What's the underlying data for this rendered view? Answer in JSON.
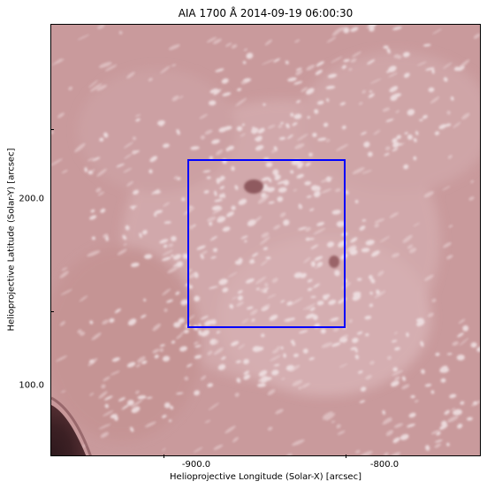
{
  "title": "AIA 1700 Å 2014-09-19 06:00:30",
  "x_axis": {
    "label": "Helioprojective Longitude (Solar-X) [arcsec]",
    "ticks": [
      "-900.0",
      "-800.0"
    ],
    "range": [
      -962,
      -732
    ]
  },
  "y_axis": {
    "label": "Helioprojective Latitude (Solar-Y) [arcsec]",
    "ticks": [
      "200.0",
      "100.0"
    ],
    "range": [
      60,
      295
    ]
  },
  "colors": {
    "sun_base": "#c99a9c",
    "sun_bright": "#f1e4e6",
    "sun_dark": "#8f5a5e",
    "limb": "#3c2024",
    "box": "#0000ff",
    "axes": "#000000"
  },
  "map": {
    "instrument": "AIA",
    "wavelength": "1700 Å",
    "date": "2014-09-19 06:00:30",
    "region_box": {
      "x_range": [
        -888,
        -805
      ],
      "y_range": [
        131,
        221
      ]
    }
  }
}
